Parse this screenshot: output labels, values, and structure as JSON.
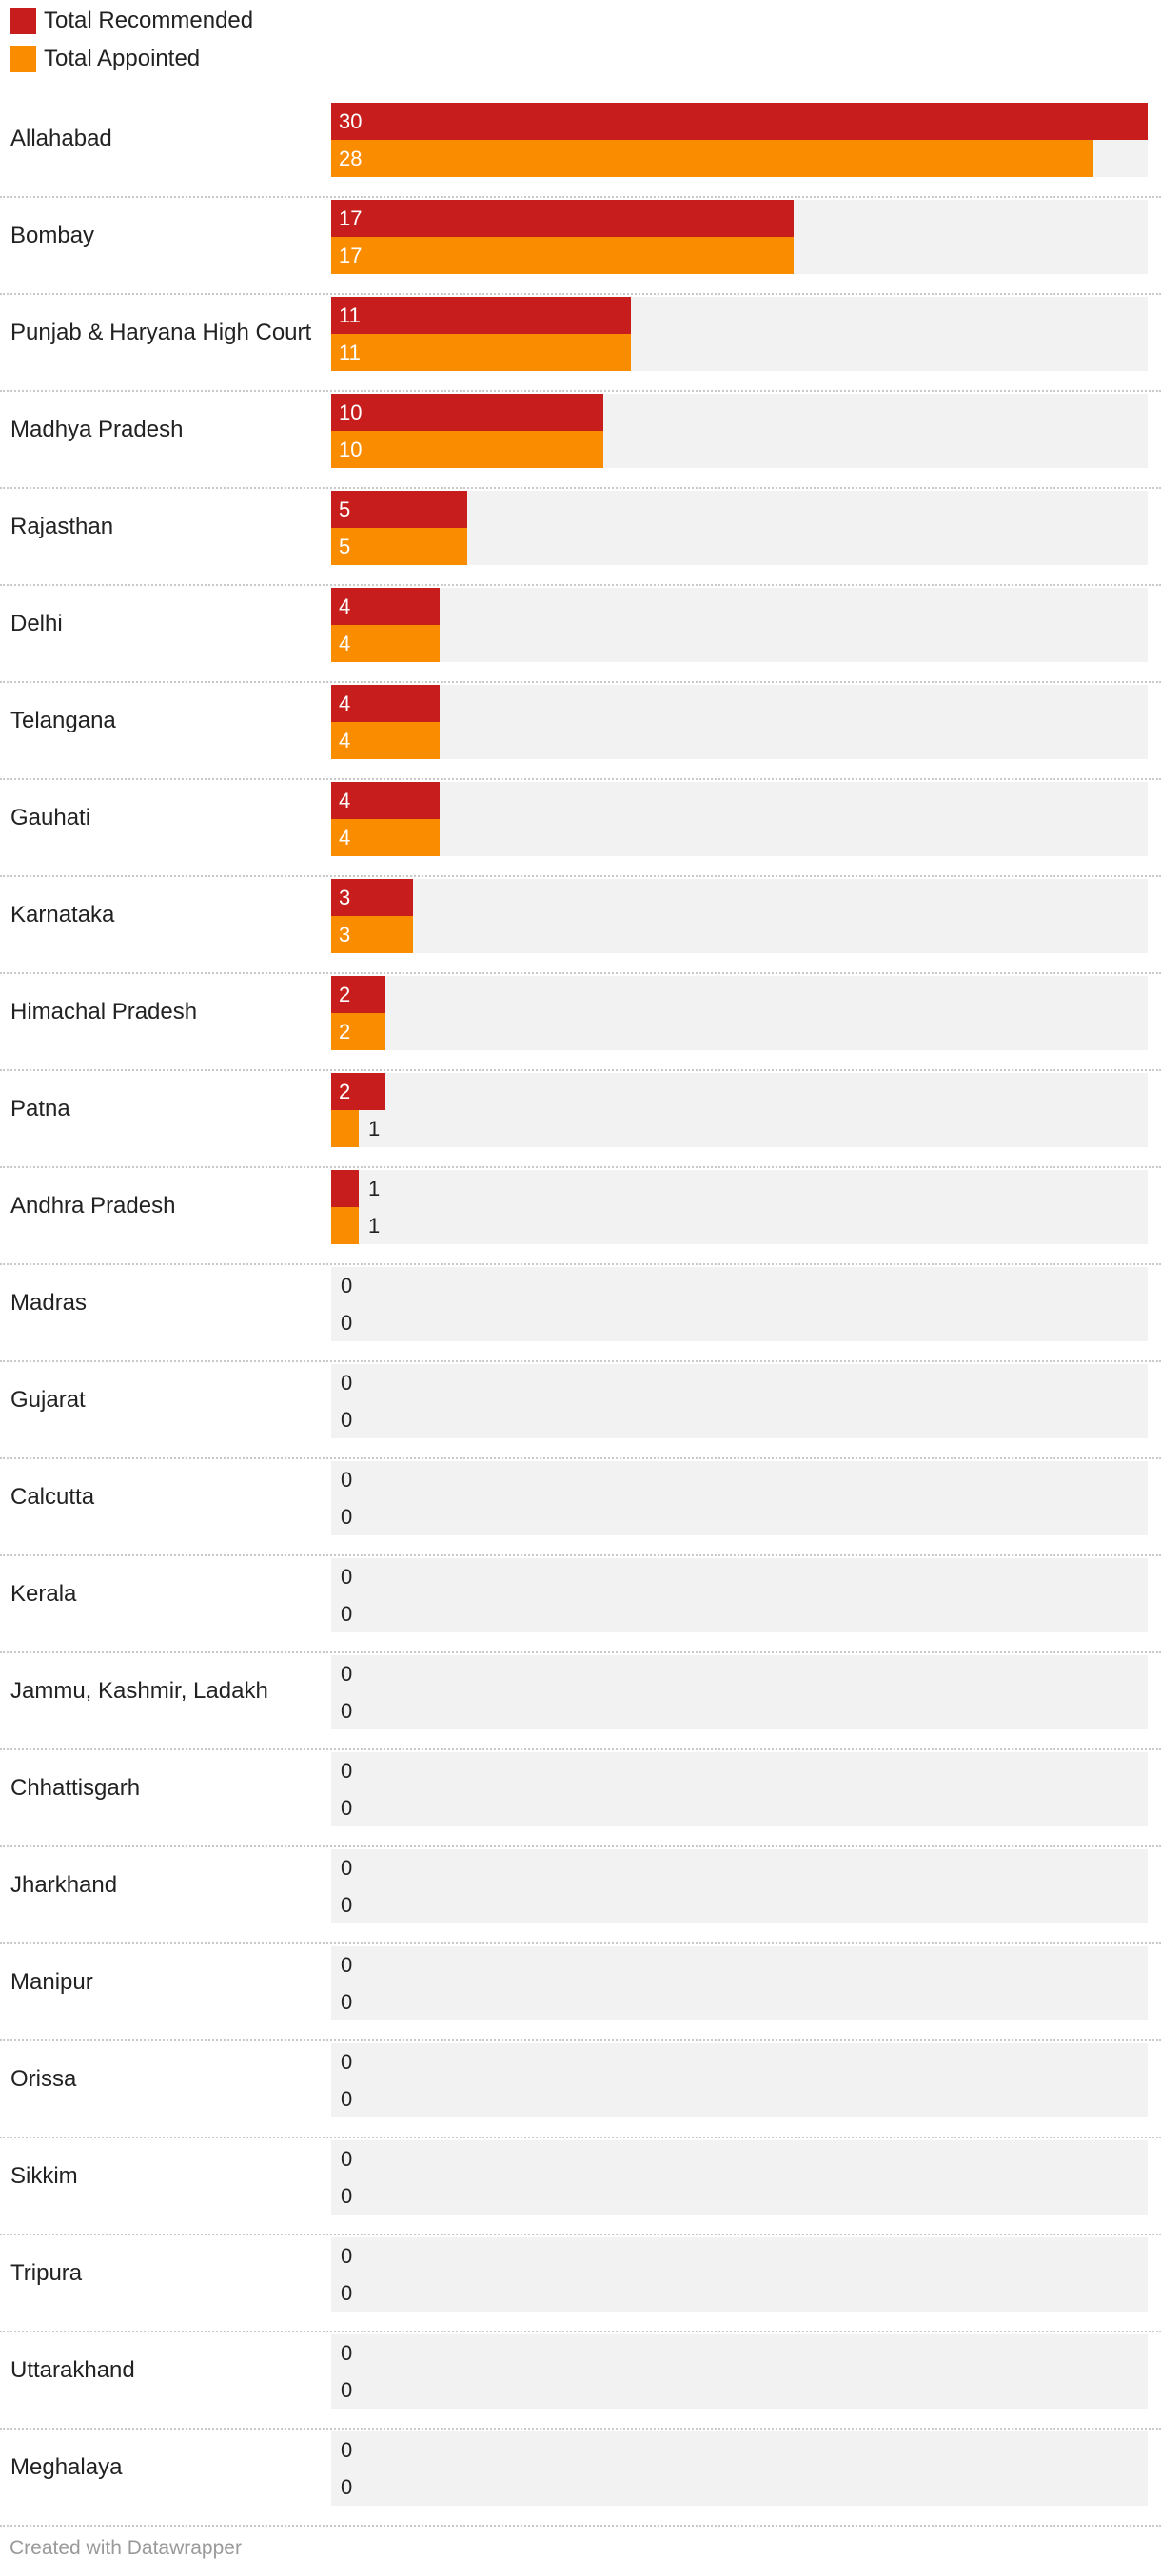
{
  "chart_data": {
    "type": "bar",
    "orientation": "horizontal",
    "legend_position": "top-left",
    "xlim": [
      0,
      30
    ],
    "categories": [
      "Allahabad",
      "Bombay",
      "Punjab & Haryana High Court",
      "Madhya Pradesh",
      "Rajasthan",
      "Delhi",
      "Telangana",
      "Gauhati",
      "Karnataka",
      "Himachal Pradesh",
      "Patna",
      "Andhra Pradesh",
      "Madras",
      "Gujarat",
      "Calcutta",
      "Kerala",
      "Jammu, Kashmir, Ladakh",
      "Chhattisgarh",
      "Jharkhand",
      "Manipur",
      "Orissa",
      "Sikkim",
      "Tripura",
      "Uttarakhand",
      "Meghalaya"
    ],
    "series": [
      {
        "name": "Total Recommended",
        "color": "#c71e1d",
        "values": [
          30,
          17,
          11,
          10,
          5,
          4,
          4,
          4,
          3,
          2,
          2,
          1,
          0,
          0,
          0,
          0,
          0,
          0,
          0,
          0,
          0,
          0,
          0,
          0,
          0
        ]
      },
      {
        "name": "Total Appointed",
        "color": "#fa8c00",
        "values": [
          28,
          17,
          11,
          10,
          5,
          4,
          4,
          4,
          3,
          2,
          1,
          1,
          0,
          0,
          0,
          0,
          0,
          0,
          0,
          0,
          0,
          0,
          0,
          0,
          0
        ]
      }
    ]
  },
  "footer": {
    "credit": "Created with Datawrapper"
  },
  "colors": {
    "track_background": "#f2f2f2",
    "inside_label": "#ffffff",
    "outside_label": "#222222"
  }
}
